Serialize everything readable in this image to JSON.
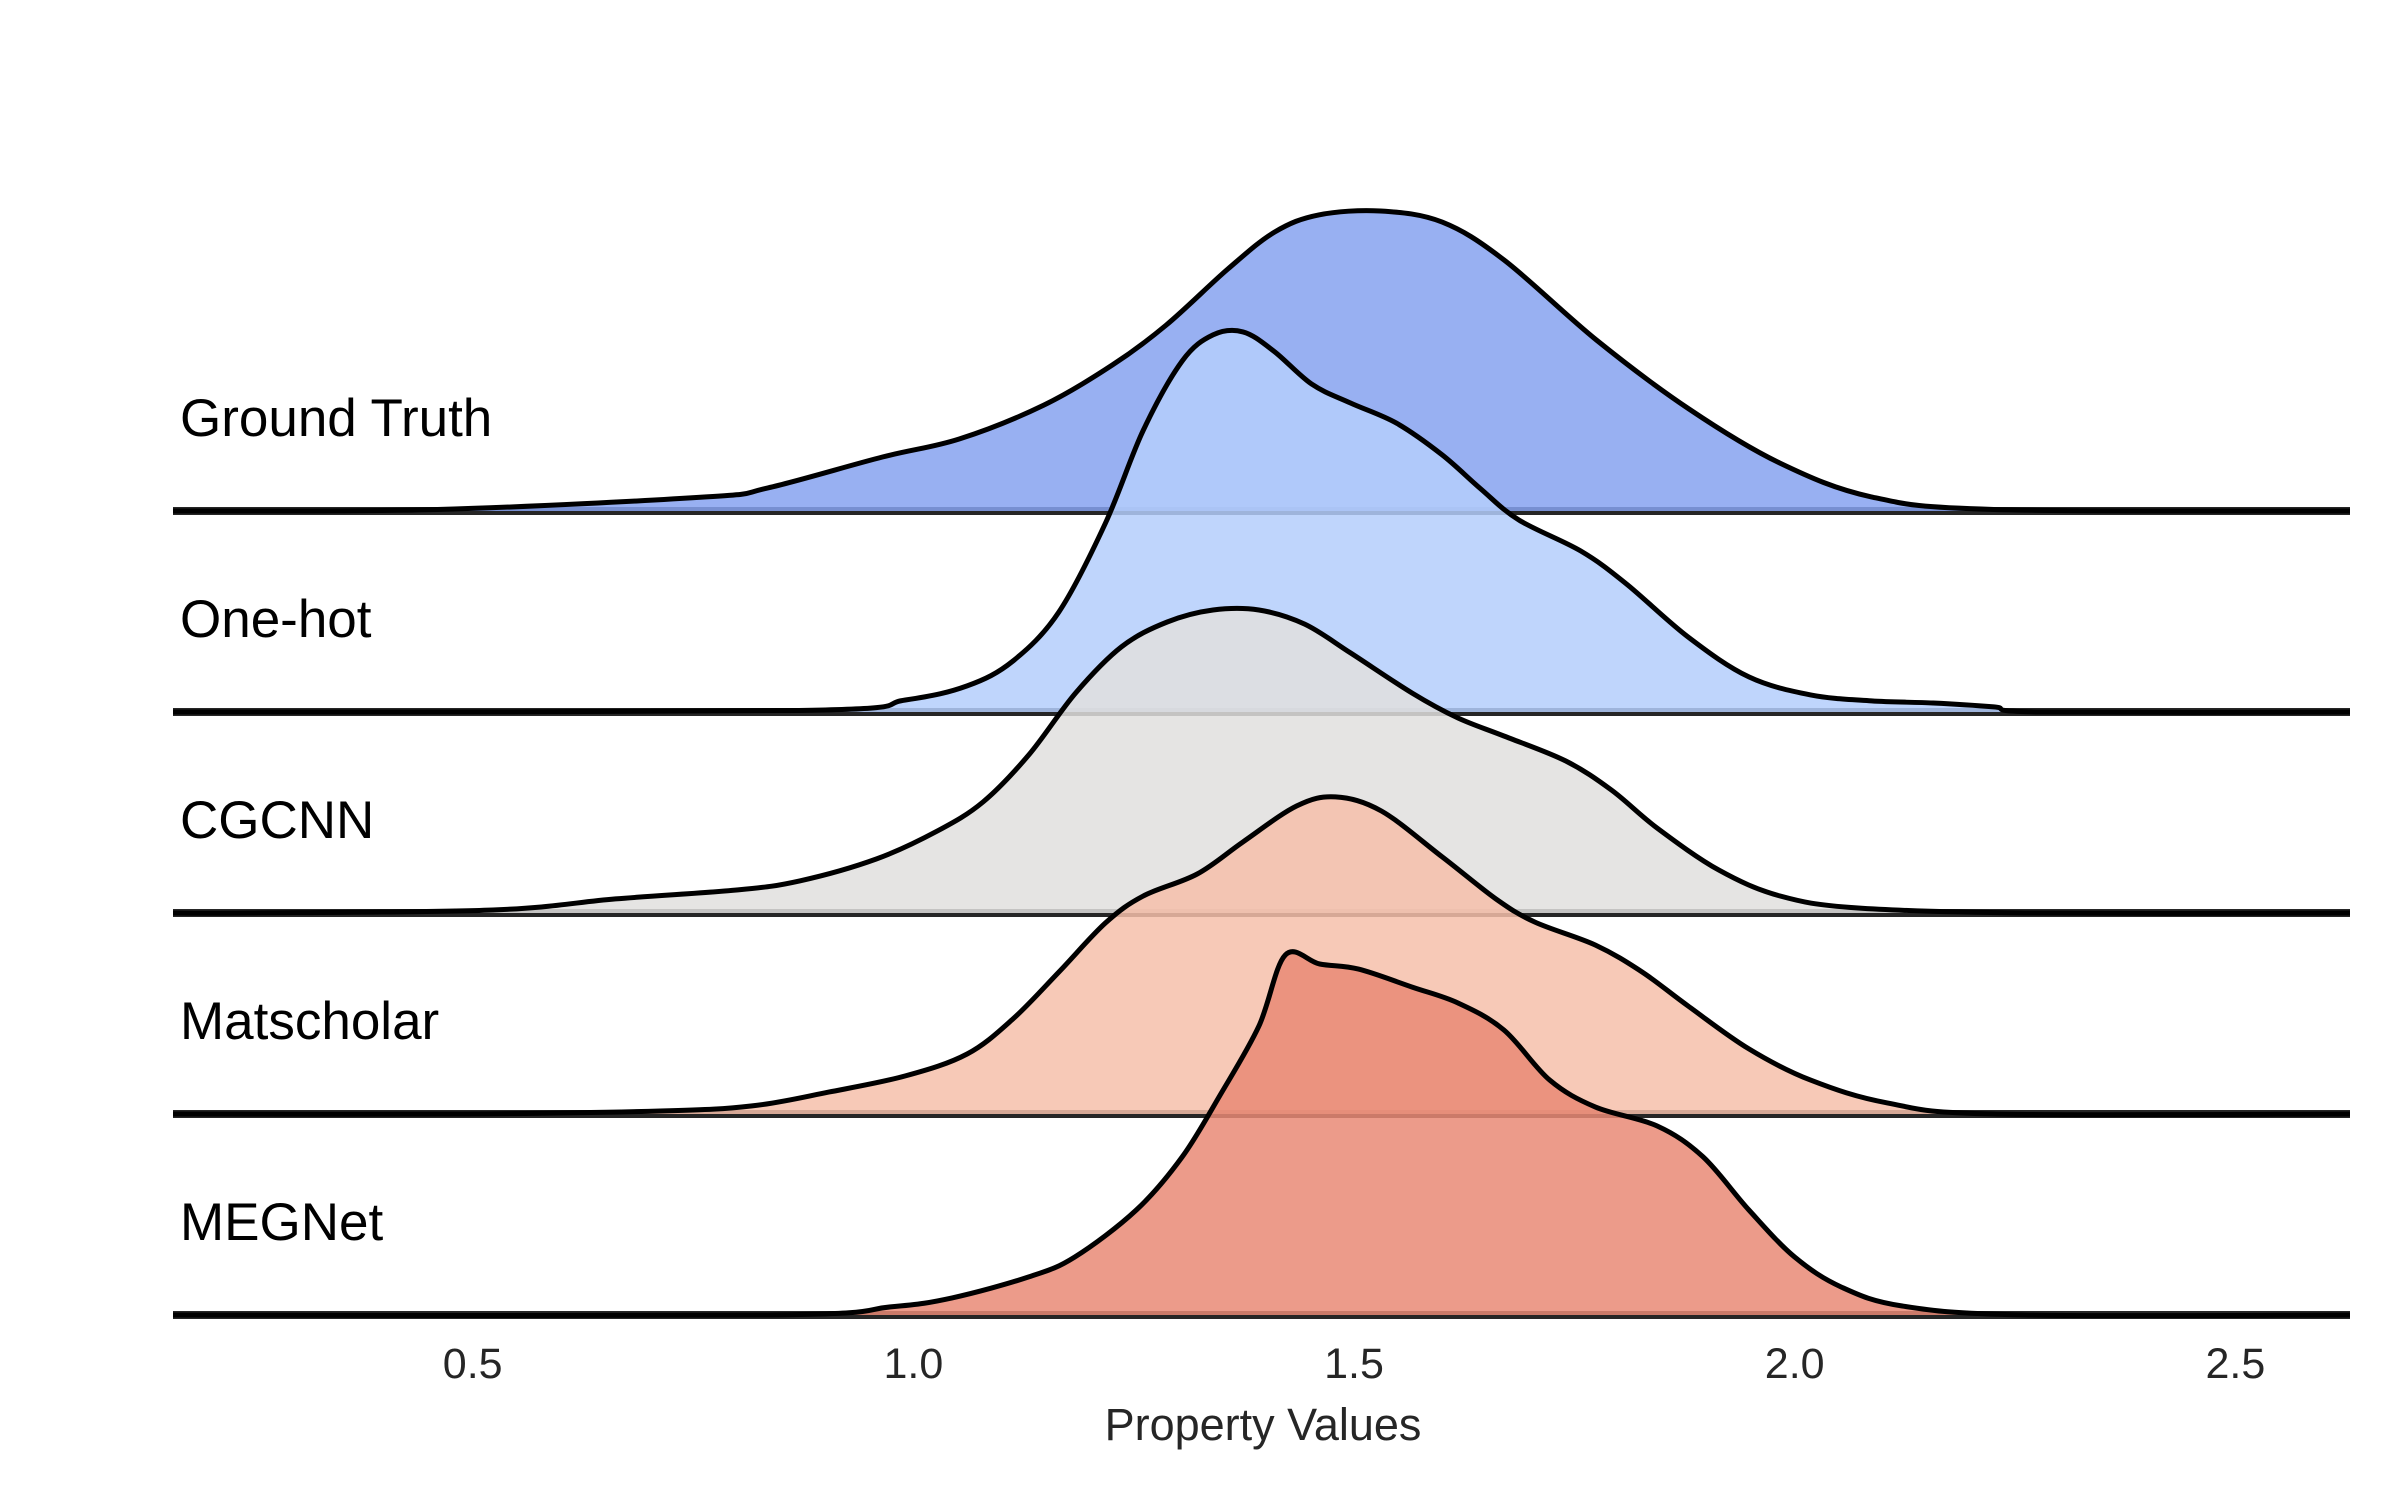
{
  "chart_data": {
    "type": "ridgeline",
    "title": "",
    "xlabel": "Property Values",
    "ylabel": "",
    "xlim": [
      0.16,
      2.63
    ],
    "xticks": [
      0.5,
      1.0,
      1.5,
      2.0,
      2.5
    ],
    "xtick_labels": [
      "0.5",
      "1.0",
      "1.5",
      "2.0",
      "2.5"
    ],
    "grid": false,
    "legend": "none",
    "density_units": "relative density (Ground Truth peak = 1.0)",
    "series": [
      {
        "name": "Ground Truth",
        "color": "#86a2f0",
        "points": [
          [
            0.16,
            0
          ],
          [
            0.46,
            0.005
          ],
          [
            0.765,
            0.047
          ],
          [
            0.835,
            0.077
          ],
          [
            0.965,
            0.18
          ],
          [
            1.052,
            0.24
          ],
          [
            1.148,
            0.353
          ],
          [
            1.226,
            0.487
          ],
          [
            1.287,
            0.62
          ],
          [
            1.357,
            0.807
          ],
          [
            1.41,
            0.93
          ],
          [
            1.46,
            0.987
          ],
          [
            1.53,
            1.0
          ],
          [
            1.6,
            0.963
          ],
          [
            1.67,
            0.837
          ],
          [
            1.775,
            0.57
          ],
          [
            1.88,
            0.34
          ],
          [
            1.983,
            0.16
          ],
          [
            2.087,
            0.047
          ],
          [
            2.226,
            0.005
          ],
          [
            2.63,
            0
          ]
        ]
      },
      {
        "name": "One-hot",
        "color": "#b4cefb",
        "points": [
          [
            0.16,
            0
          ],
          [
            0.87,
            0.005
          ],
          [
            0.991,
            0.04
          ],
          [
            1.061,
            0.087
          ],
          [
            1.113,
            0.17
          ],
          [
            1.165,
            0.333
          ],
          [
            1.218,
            0.63
          ],
          [
            1.261,
            0.94
          ],
          [
            1.305,
            1.17
          ],
          [
            1.34,
            1.257
          ],
          [
            1.374,
            1.267
          ],
          [
            1.409,
            1.203
          ],
          [
            1.452,
            1.093
          ],
          [
            1.496,
            1.03
          ],
          [
            1.548,
            0.963
          ],
          [
            1.6,
            0.857
          ],
          [
            1.644,
            0.743
          ],
          [
            1.687,
            0.64
          ],
          [
            1.757,
            0.537
          ],
          [
            1.809,
            0.427
          ],
          [
            1.879,
            0.25
          ],
          [
            1.948,
            0.117
          ],
          [
            2.018,
            0.057
          ],
          [
            2.087,
            0.037
          ],
          [
            2.157,
            0.03
          ],
          [
            2.226,
            0.017
          ],
          [
            2.279,
            0
          ],
          [
            2.63,
            0
          ]
        ]
      },
      {
        "name": "CGCNN",
        "color": "#e0dfde",
        "points": [
          [
            0.16,
            0
          ],
          [
            0.245,
            0
          ],
          [
            0.523,
            0.01
          ],
          [
            0.662,
            0.047
          ],
          [
            0.801,
            0.077
          ],
          [
            0.871,
            0.107
          ],
          [
            0.958,
            0.18
          ],
          [
            1.027,
            0.273
          ],
          [
            1.079,
            0.37
          ],
          [
            1.131,
            0.527
          ],
          [
            1.184,
            0.733
          ],
          [
            1.236,
            0.887
          ],
          [
            1.288,
            0.97
          ],
          [
            1.34,
            1.01
          ],
          [
            1.392,
            1.01
          ],
          [
            1.444,
            0.963
          ],
          [
            1.496,
            0.867
          ],
          [
            1.566,
            0.733
          ],
          [
            1.618,
            0.65
          ],
          [
            1.67,
            0.59
          ],
          [
            1.74,
            0.507
          ],
          [
            1.792,
            0.41
          ],
          [
            1.844,
            0.283
          ],
          [
            1.914,
            0.143
          ],
          [
            1.983,
            0.057
          ],
          [
            2.07,
            0.017
          ],
          [
            2.261,
            0
          ],
          [
            2.63,
            0
          ]
        ]
      },
      {
        "name": "Matscholar",
        "color": "#f6c0aa",
        "points": [
          [
            0.16,
            0
          ],
          [
            0.487,
            0
          ],
          [
            0.713,
            0.01
          ],
          [
            0.817,
            0.027
          ],
          [
            0.904,
            0.073
          ],
          [
            0.991,
            0.127
          ],
          [
            1.061,
            0.2
          ],
          [
            1.113,
            0.317
          ],
          [
            1.165,
            0.473
          ],
          [
            1.218,
            0.637
          ],
          [
            1.261,
            0.727
          ],
          [
            1.322,
            0.8
          ],
          [
            1.374,
            0.907
          ],
          [
            1.435,
            1.027
          ],
          [
            1.479,
            1.057
          ],
          [
            1.531,
            1.01
          ],
          [
            1.6,
            0.857
          ],
          [
            1.661,
            0.717
          ],
          [
            1.705,
            0.64
          ],
          [
            1.774,
            0.563
          ],
          [
            1.827,
            0.473
          ],
          [
            1.879,
            0.36
          ],
          [
            1.948,
            0.217
          ],
          [
            2.018,
            0.113
          ],
          [
            2.105,
            0.037
          ],
          [
            2.226,
            0
          ],
          [
            2.63,
            0
          ]
        ]
      },
      {
        "name": "MEGNet",
        "color": "#e98a75",
        "points": [
          [
            0.16,
            0
          ],
          [
            0.835,
            0
          ],
          [
            0.974,
            0.027
          ],
          [
            1.044,
            0.057
          ],
          [
            1.131,
            0.127
          ],
          [
            1.183,
            0.193
          ],
          [
            1.253,
            0.35
          ],
          [
            1.305,
            0.527
          ],
          [
            1.348,
            0.733
          ],
          [
            1.392,
            0.963
          ],
          [
            1.422,
            1.2
          ],
          [
            1.461,
            1.17
          ],
          [
            1.505,
            1.153
          ],
          [
            1.566,
            1.093
          ],
          [
            1.618,
            1.04
          ],
          [
            1.67,
            0.95
          ],
          [
            1.722,
            0.783
          ],
          [
            1.774,
            0.693
          ],
          [
            1.844,
            0.63
          ],
          [
            1.896,
            0.527
          ],
          [
            1.948,
            0.35
          ],
          [
            2.0,
            0.193
          ],
          [
            2.053,
            0.093
          ],
          [
            2.122,
            0.03
          ],
          [
            2.261,
            0
          ],
          [
            2.63,
            0
          ]
        ]
      }
    ]
  }
}
